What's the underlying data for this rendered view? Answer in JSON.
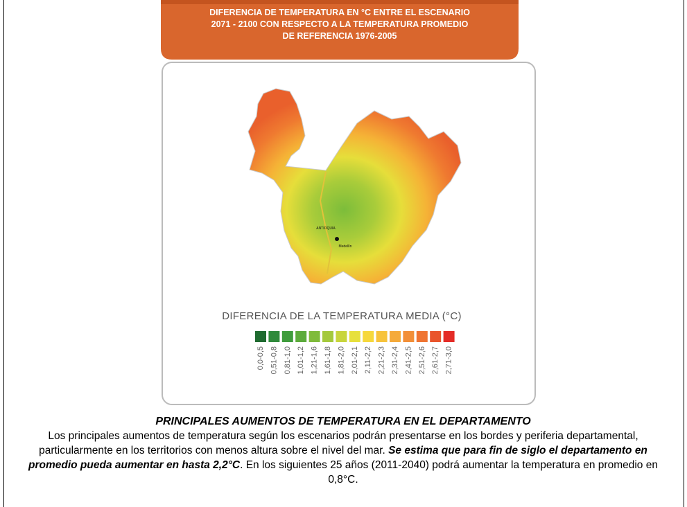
{
  "header": {
    "title_lines": [
      "DIFERENCIA  DE TEMPERATURA EN  °C ENTRE EL ESCENARIO",
      "2071 - 2100 CON RESPECTO A LA TEMPERATURA PROMEDIO",
      "DE REFERENCIA 1976-2005"
    ]
  },
  "map": {
    "region_label": "ANTIOQUIA",
    "city_label": "Medellín"
  },
  "legend": {
    "title": "DIFERENCIA DE LA  TEMPERATURA MEDIA (°C)",
    "items": [
      {
        "label": "0,0-0,5",
        "color": "#1f6b30"
      },
      {
        "label": "0,51-0,8",
        "color": "#2f8a3b"
      },
      {
        "label": "0,81-1,0",
        "color": "#3f9c3c"
      },
      {
        "label": "1,01-1,2",
        "color": "#5cab3b"
      },
      {
        "label": "1,21-1,6",
        "color": "#7fbb3b"
      },
      {
        "label": "1,61-1,8",
        "color": "#a4c93c"
      },
      {
        "label": "1,81-2,0",
        "color": "#c8d53c"
      },
      {
        "label": "2,01-2,1",
        "color": "#e7e03c"
      },
      {
        "label": "2,11-2,2",
        "color": "#f6d83c"
      },
      {
        "label": "2,21-2,3",
        "color": "#f7c33b"
      },
      {
        "label": "2,31-2,4",
        "color": "#f5aa3a"
      },
      {
        "label": "2,41-2,5",
        "color": "#f28f38"
      },
      {
        "label": "2,51-2,6",
        "color": "#ef7432"
      },
      {
        "label": "2,61-2,7",
        "color": "#e9552c"
      },
      {
        "label": "2,71-3,0",
        "color": "#e42c27"
      }
    ]
  },
  "caption": {
    "title": "PRINCIPALES AUMENTOS DE TEMPERATURA EN EL DEPARTAMENTO",
    "text_before": "Los principales aumentos de temperatura según los escenarios podrán presentarse en los bordes y periferia departamental, particularmente en los territorios con menos altura sobre el nivel del mar. ",
    "text_bold": "Se estima que para fin de siglo el departamento en promedio pueda aumentar en hasta 2,2°C",
    "text_after": ". En los siguientes 25 años (2011-2040) podrá aumentar la temperatura en promedio en 0,8°C."
  }
}
